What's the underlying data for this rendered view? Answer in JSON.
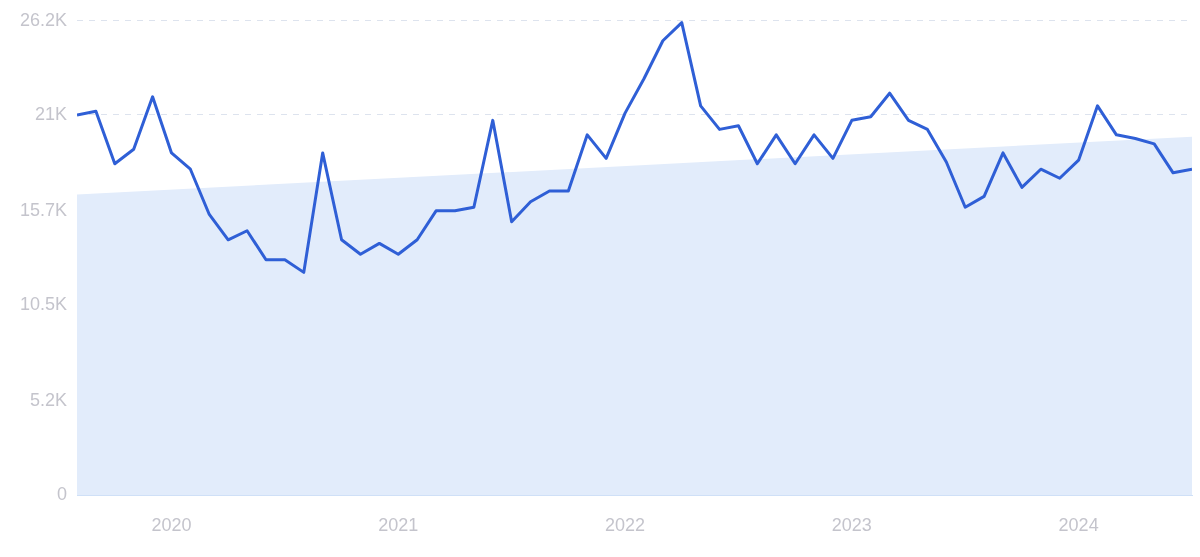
{
  "chart_data": {
    "type": "line",
    "x": [
      "2019-08",
      "2019-09",
      "2019-10",
      "2019-11",
      "2019-12",
      "2020-01",
      "2020-02",
      "2020-03",
      "2020-04",
      "2020-05",
      "2020-06",
      "2020-07",
      "2020-08",
      "2020-09",
      "2020-10",
      "2020-11",
      "2020-12",
      "2021-01",
      "2021-02",
      "2021-03",
      "2021-04",
      "2021-05",
      "2021-06",
      "2021-07",
      "2021-08",
      "2021-09",
      "2021-10",
      "2021-11",
      "2021-12",
      "2022-01",
      "2022-02",
      "2022-03",
      "2022-04",
      "2022-05",
      "2022-06",
      "2022-07",
      "2022-08",
      "2022-09",
      "2022-10",
      "2022-11",
      "2022-12",
      "2023-01",
      "2023-02",
      "2023-03",
      "2023-04",
      "2023-05",
      "2023-06",
      "2023-07",
      "2023-08",
      "2023-09",
      "2023-10",
      "2023-11",
      "2023-12",
      "2024-01",
      "2024-02",
      "2024-03",
      "2024-04",
      "2024-05",
      "2024-06",
      "2024-07"
    ],
    "series": [
      {
        "type": "area",
        "color": "#e2ecfb",
        "x": [
          "2019-08",
          "2024-07"
        ],
        "values": [
          16600,
          19800
        ]
      },
      {
        "type": "line",
        "color": "#2f5fd6",
        "values": [
          21000,
          21200,
          18300,
          19100,
          22000,
          18900,
          18000,
          15500,
          14100,
          14600,
          13000,
          13000,
          12300,
          18900,
          14100,
          13300,
          13900,
          13300,
          14100,
          15700,
          15700,
          15900,
          20700,
          15100,
          16200,
          16800,
          16800,
          19900,
          18600,
          21100,
          23000,
          25100,
          26100,
          21500,
          20200,
          20400,
          18300,
          19900,
          18300,
          19900,
          18600,
          20700,
          20900,
          22200,
          20700,
          20200,
          18400,
          15900,
          16500,
          18900,
          17000,
          18000,
          17500,
          18500,
          21500,
          19900,
          19700,
          19400,
          17800,
          18000
        ]
      }
    ],
    "xlim": [
      "2019-08",
      "2024-07"
    ],
    "xticks": [
      {
        "value": "2020-01",
        "label": "2020"
      },
      {
        "value": "2021-01",
        "label": "2021"
      },
      {
        "value": "2022-01",
        "label": "2022"
      },
      {
        "value": "2023-01",
        "label": "2023"
      },
      {
        "value": "2024-01",
        "label": "2024"
      }
    ],
    "ylim": [
      0,
      26200
    ],
    "yticks": [
      0,
      {
        "value": 5200,
        "label": "5.2K"
      },
      {
        "value": 10500,
        "label": "10.5K"
      },
      {
        "value": 15700,
        "label": "15.7K"
      },
      {
        "value": 21000,
        "label": "21K"
      },
      {
        "value": 26200,
        "label": "26.2K"
      }
    ],
    "grid": "y",
    "legend": false,
    "marker": "none",
    "line_style": "solid"
  }
}
